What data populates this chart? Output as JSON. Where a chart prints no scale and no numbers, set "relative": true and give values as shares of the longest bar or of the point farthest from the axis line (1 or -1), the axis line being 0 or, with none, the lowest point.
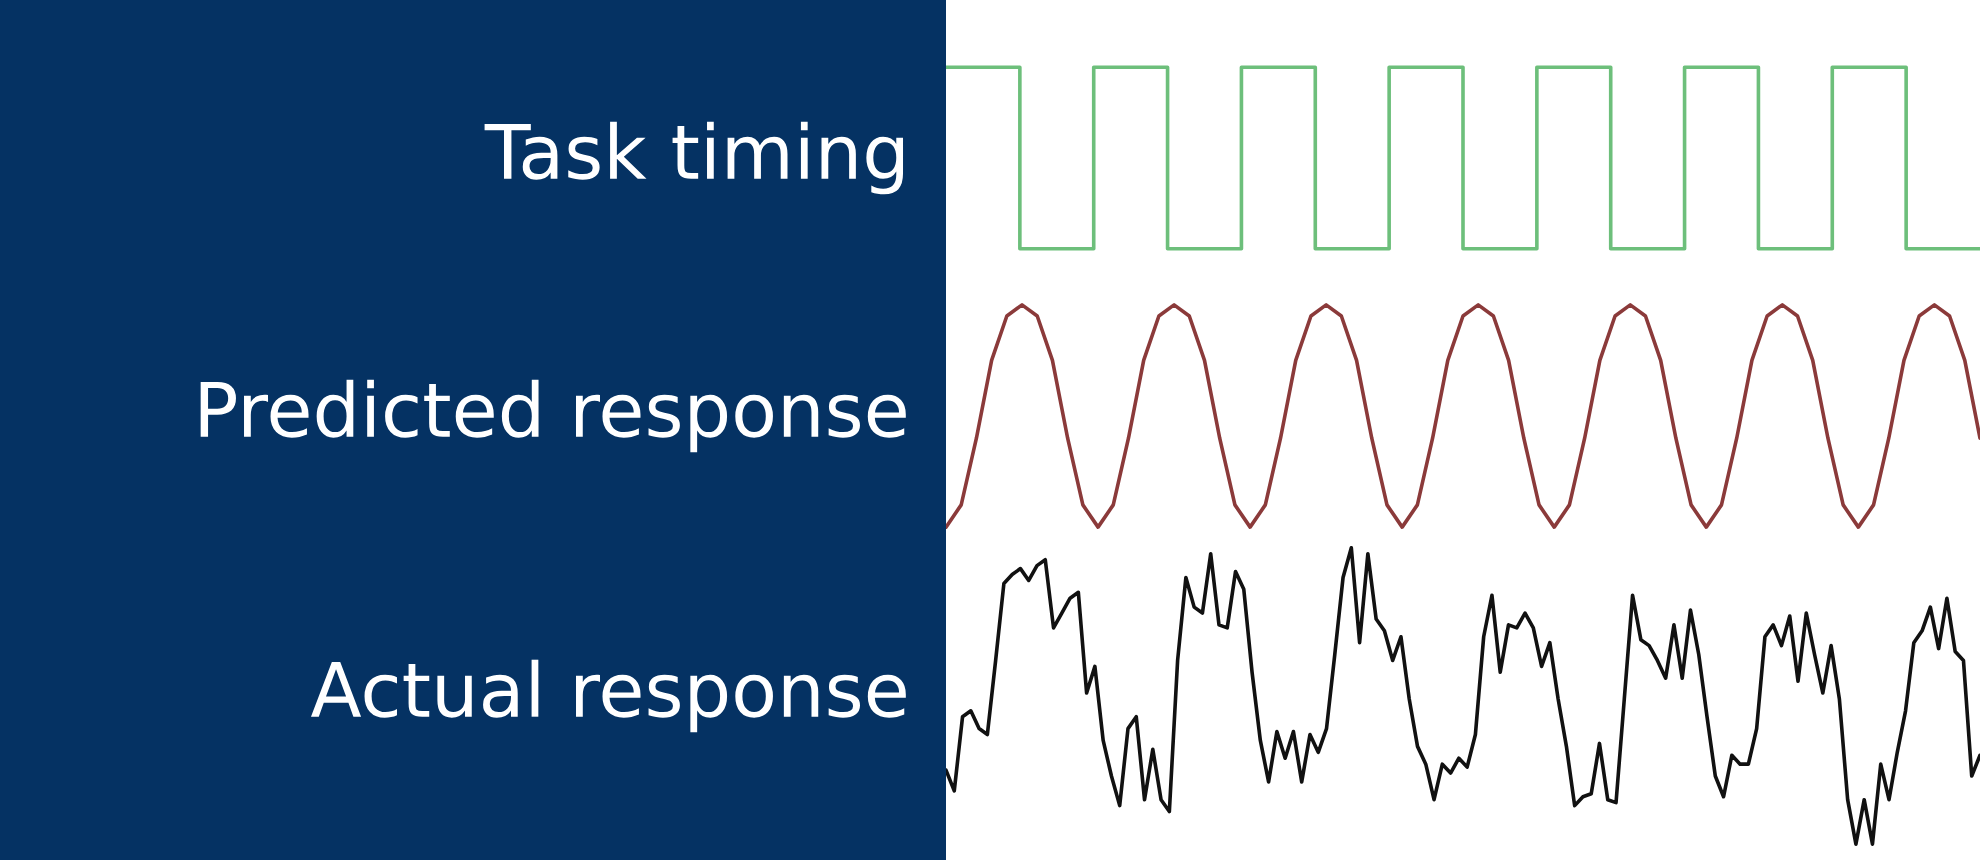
{
  "chart_data": [
    {
      "type": "step",
      "ylabel": "Task timing",
      "color": "#6dbf7b",
      "relative": true,
      "tick_labels": false,
      "categories": [
        null,
        null,
        null,
        null,
        null,
        null,
        null,
        null,
        null,
        null,
        null,
        null,
        null,
        null,
        null
      ],
      "values": [
        1,
        0,
        1,
        0,
        1,
        0,
        1,
        0,
        1,
        0,
        1,
        0,
        1,
        0,
        0
      ]
    },
    {
      "type": "line",
      "ylabel": "Predicted response",
      "color": "#8b3a3a",
      "relative": true,
      "tick_labels": false,
      "categories": [
        null,
        null,
        null,
        null,
        null,
        null,
        null,
        null,
        null,
        null,
        null,
        null,
        null,
        null,
        null,
        null,
        null,
        null,
        null,
        null,
        null,
        null,
        null,
        null,
        null,
        null,
        null,
        null,
        null,
        null,
        null,
        null,
        null,
        null,
        null,
        null,
        null,
        null,
        null,
        null,
        null,
        null,
        null,
        null,
        null,
        null,
        null,
        null,
        null,
        null,
        null,
        null,
        null,
        null,
        null,
        null,
        null,
        null,
        null,
        null,
        null,
        null,
        null,
        null,
        null,
        null,
        null,
        null,
        null
      ],
      "values": [
        0,
        0.1,
        0.4,
        0.75,
        0.95,
        1,
        0.95,
        0.75,
        0.4,
        0.1,
        0,
        0.1,
        0.4,
        0.75,
        0.95,
        1,
        0.95,
        0.75,
        0.4,
        0.1,
        0,
        0.1,
        0.4,
        0.75,
        0.95,
        1,
        0.95,
        0.75,
        0.4,
        0.1,
        0,
        0.1,
        0.4,
        0.75,
        0.95,
        1,
        0.95,
        0.75,
        0.4,
        0.1,
        0,
        0.1,
        0.4,
        0.75,
        0.95,
        1,
        0.95,
        0.75,
        0.4,
        0.1,
        0,
        0.1,
        0.4,
        0.75,
        0.95,
        1,
        0.95,
        0.75,
        0.4,
        0.1,
        0,
        0.1,
        0.4,
        0.75,
        0.95,
        1,
        0.95,
        0.75,
        0.4
      ]
    },
    {
      "type": "line",
      "ylabel": "Actual response",
      "color": "#111111",
      "relative": true,
      "tick_labels": false,
      "categories": [
        null,
        null,
        null,
        null,
        null,
        null,
        null,
        null,
        null,
        null,
        null,
        null,
        null,
        null,
        null,
        null,
        null,
        null,
        null,
        null,
        null,
        null,
        null,
        null,
        null,
        null,
        null,
        null,
        null,
        null,
        null,
        null,
        null,
        null,
        null,
        null,
        null,
        null,
        null,
        null,
        null,
        null,
        null,
        null,
        null,
        null,
        null,
        null,
        null,
        null,
        null,
        null,
        null,
        null,
        null,
        null,
        null,
        null,
        null,
        null,
        null,
        null,
        null,
        null,
        null,
        null,
        null,
        null,
        null,
        null,
        null,
        null,
        null,
        null,
        null,
        null,
        null,
        null,
        null,
        null,
        null,
        null,
        null,
        null,
        null,
        null,
        null,
        null,
        null,
        null,
        null,
        null,
        null,
        null,
        null,
        null,
        null,
        null,
        null,
        null,
        null,
        null,
        null,
        null,
        null,
        null,
        null,
        null,
        null,
        null,
        null,
        null,
        null,
        null,
        null,
        null,
        null,
        null,
        null,
        null,
        null,
        null,
        null,
        null,
        null,
        null
      ],
      "values": [
        0.25,
        0.18,
        0.43,
        0.45,
        0.39,
        0.37,
        0.62,
        0.88,
        0.91,
        0.93,
        0.89,
        0.94,
        0.96,
        0.73,
        0.78,
        0.83,
        0.85,
        0.51,
        0.6,
        0.35,
        0.23,
        0.13,
        0.39,
        0.43,
        0.15,
        0.32,
        0.15,
        0.11,
        0.62,
        0.9,
        0.8,
        0.78,
        0.98,
        0.74,
        0.73,
        0.92,
        0.86,
        0.58,
        0.35,
        0.21,
        0.38,
        0.29,
        0.38,
        0.21,
        0.37,
        0.31,
        0.39,
        0.64,
        0.9,
        1,
        0.68,
        0.98,
        0.76,
        0.72,
        0.62,
        0.7,
        0.49,
        0.33,
        0.27,
        0.15,
        0.27,
        0.24,
        0.29,
        0.26,
        0.37,
        0.7,
        0.84,
        0.58,
        0.74,
        0.73,
        0.78,
        0.73,
        0.6,
        0.68,
        0.49,
        0.33,
        0.13,
        0.16,
        0.17,
        0.34,
        0.15,
        0.14,
        0.49,
        0.84,
        0.69,
        0.67,
        0.62,
        0.56,
        0.74,
        0.56,
        0.79,
        0.64,
        0.43,
        0.23,
        0.16,
        0.3,
        0.27,
        0.27,
        0.39,
        0.7,
        0.74,
        0.67,
        0.77,
        0.55,
        0.78,
        0.64,
        0.51,
        0.67,
        0.49,
        0.15,
        0,
        0.15,
        0,
        0.27,
        0.15,
        0.31,
        0.45,
        0.68,
        0.72,
        0.8,
        0.66,
        0.83,
        0.65,
        0.62,
        0.23,
        0.3
      ]
    }
  ]
}
